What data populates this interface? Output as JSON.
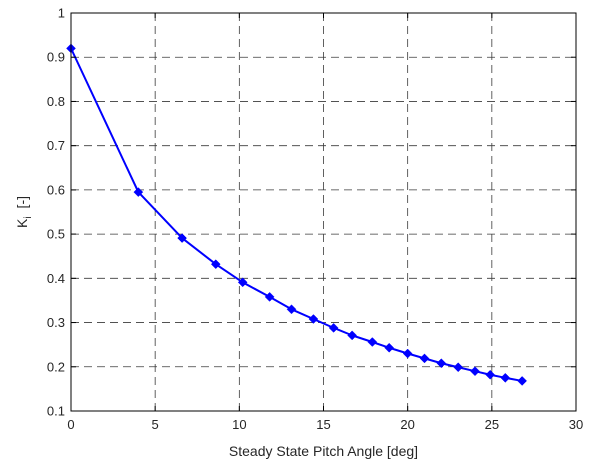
{
  "chart_data": {
    "type": "line",
    "title": "",
    "xlabel": "Steady State Pitch Angle [deg]",
    "ylabel": {
      "main": "K",
      "subscript": "i",
      "unit": "[-]"
    },
    "xlim": [
      0,
      30
    ],
    "ylim": [
      0.1,
      1
    ],
    "xticks": [
      "0",
      "5",
      "10",
      "15",
      "20",
      "25",
      "30"
    ],
    "yticks": [
      "0.1",
      "0.2",
      "0.3",
      "0.4",
      "0.5",
      "0.6",
      "0.7",
      "0.8",
      "0.9",
      "1"
    ],
    "grid": true,
    "grid_style": "dashed",
    "line_color": "#0000ff",
    "marker": "diamond",
    "series": [
      {
        "x": [
          0,
          4,
          6.6,
          8.6,
          10.2,
          11.8,
          13.1,
          14.4,
          15.6,
          16.7,
          17.9,
          18.9,
          20.0,
          21.0,
          22.0,
          23.0,
          24.0,
          24.9,
          25.8,
          26.8
        ],
        "y": [
          0.92,
          0.595,
          0.491,
          0.432,
          0.391,
          0.358,
          0.33,
          0.308,
          0.288,
          0.271,
          0.256,
          0.243,
          0.23,
          0.219,
          0.208,
          0.199,
          0.19,
          0.182,
          0.175,
          0.168
        ]
      }
    ]
  }
}
